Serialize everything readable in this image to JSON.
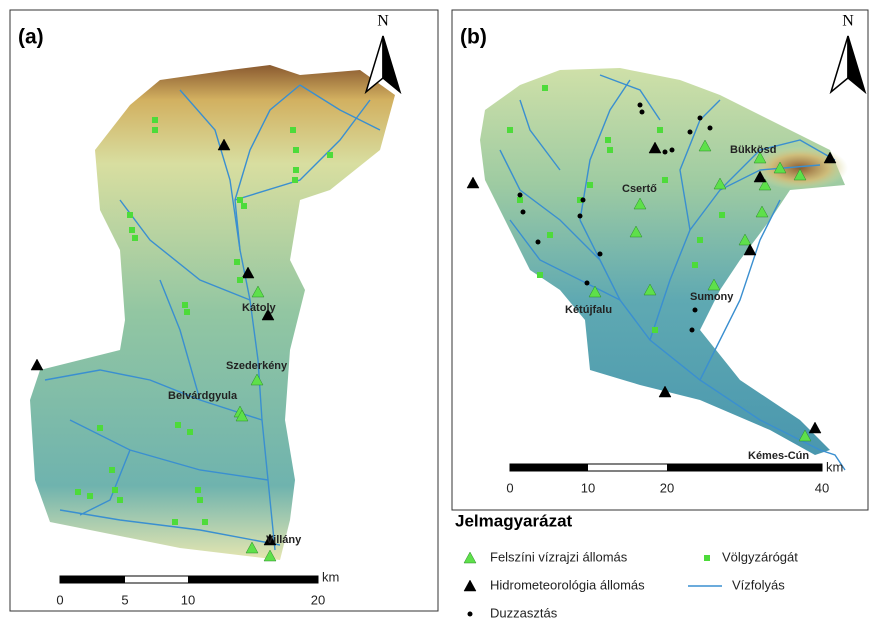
{
  "panels": [
    {
      "label": "(a)",
      "north": "N",
      "places": [
        "Kátoly",
        "Szederkény",
        "Belvárdgyula",
        "Villány"
      ],
      "scale": {
        "ticks": [
          0,
          5,
          10,
          20
        ],
        "unit": "km"
      }
    },
    {
      "label": "(b)",
      "north": "N",
      "places": [
        "Bükkösd",
        "Csertő",
        "Kétújfalu",
        "Sumony",
        "Kémes-Cún"
      ],
      "scale": {
        "ticks": [
          0,
          10,
          20,
          40
        ],
        "unit": "km"
      }
    }
  ],
  "legend": {
    "title": "Jelmagyarázat",
    "items": [
      "Felszíni vízrajzi állomás",
      "Völgyzárógát",
      "Hidrometeorológia állomás",
      "Vízfolyás",
      "Duzzasztás"
    ]
  }
}
